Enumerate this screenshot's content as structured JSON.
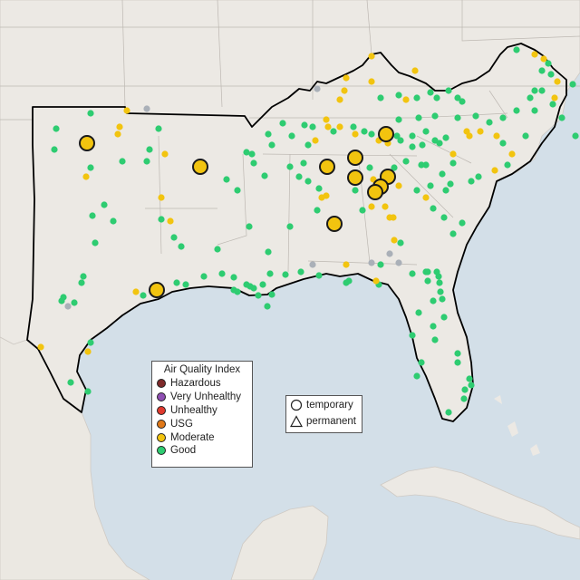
{
  "legend": {
    "title": "Air Quality Index",
    "categories": [
      {
        "label": "Hazardous",
        "color": "#7e2a2a"
      },
      {
        "label": "Very Unhealthy",
        "color": "#8f4fb3"
      },
      {
        "label": "Unhealthy",
        "color": "#e03a2e"
      },
      {
        "label": "USG",
        "color": "#e07818"
      },
      {
        "label": "Moderate",
        "color": "#f2c40f"
      },
      {
        "label": "Good",
        "color": "#2ecc71"
      }
    ]
  },
  "shape_legend": {
    "temporary_label": "temporary",
    "permanent_label": "permanent"
  },
  "colors": {
    "ocean": "#d3dfe8",
    "land": "#ece9e4",
    "no_data": "#aab0b8"
  }
}
